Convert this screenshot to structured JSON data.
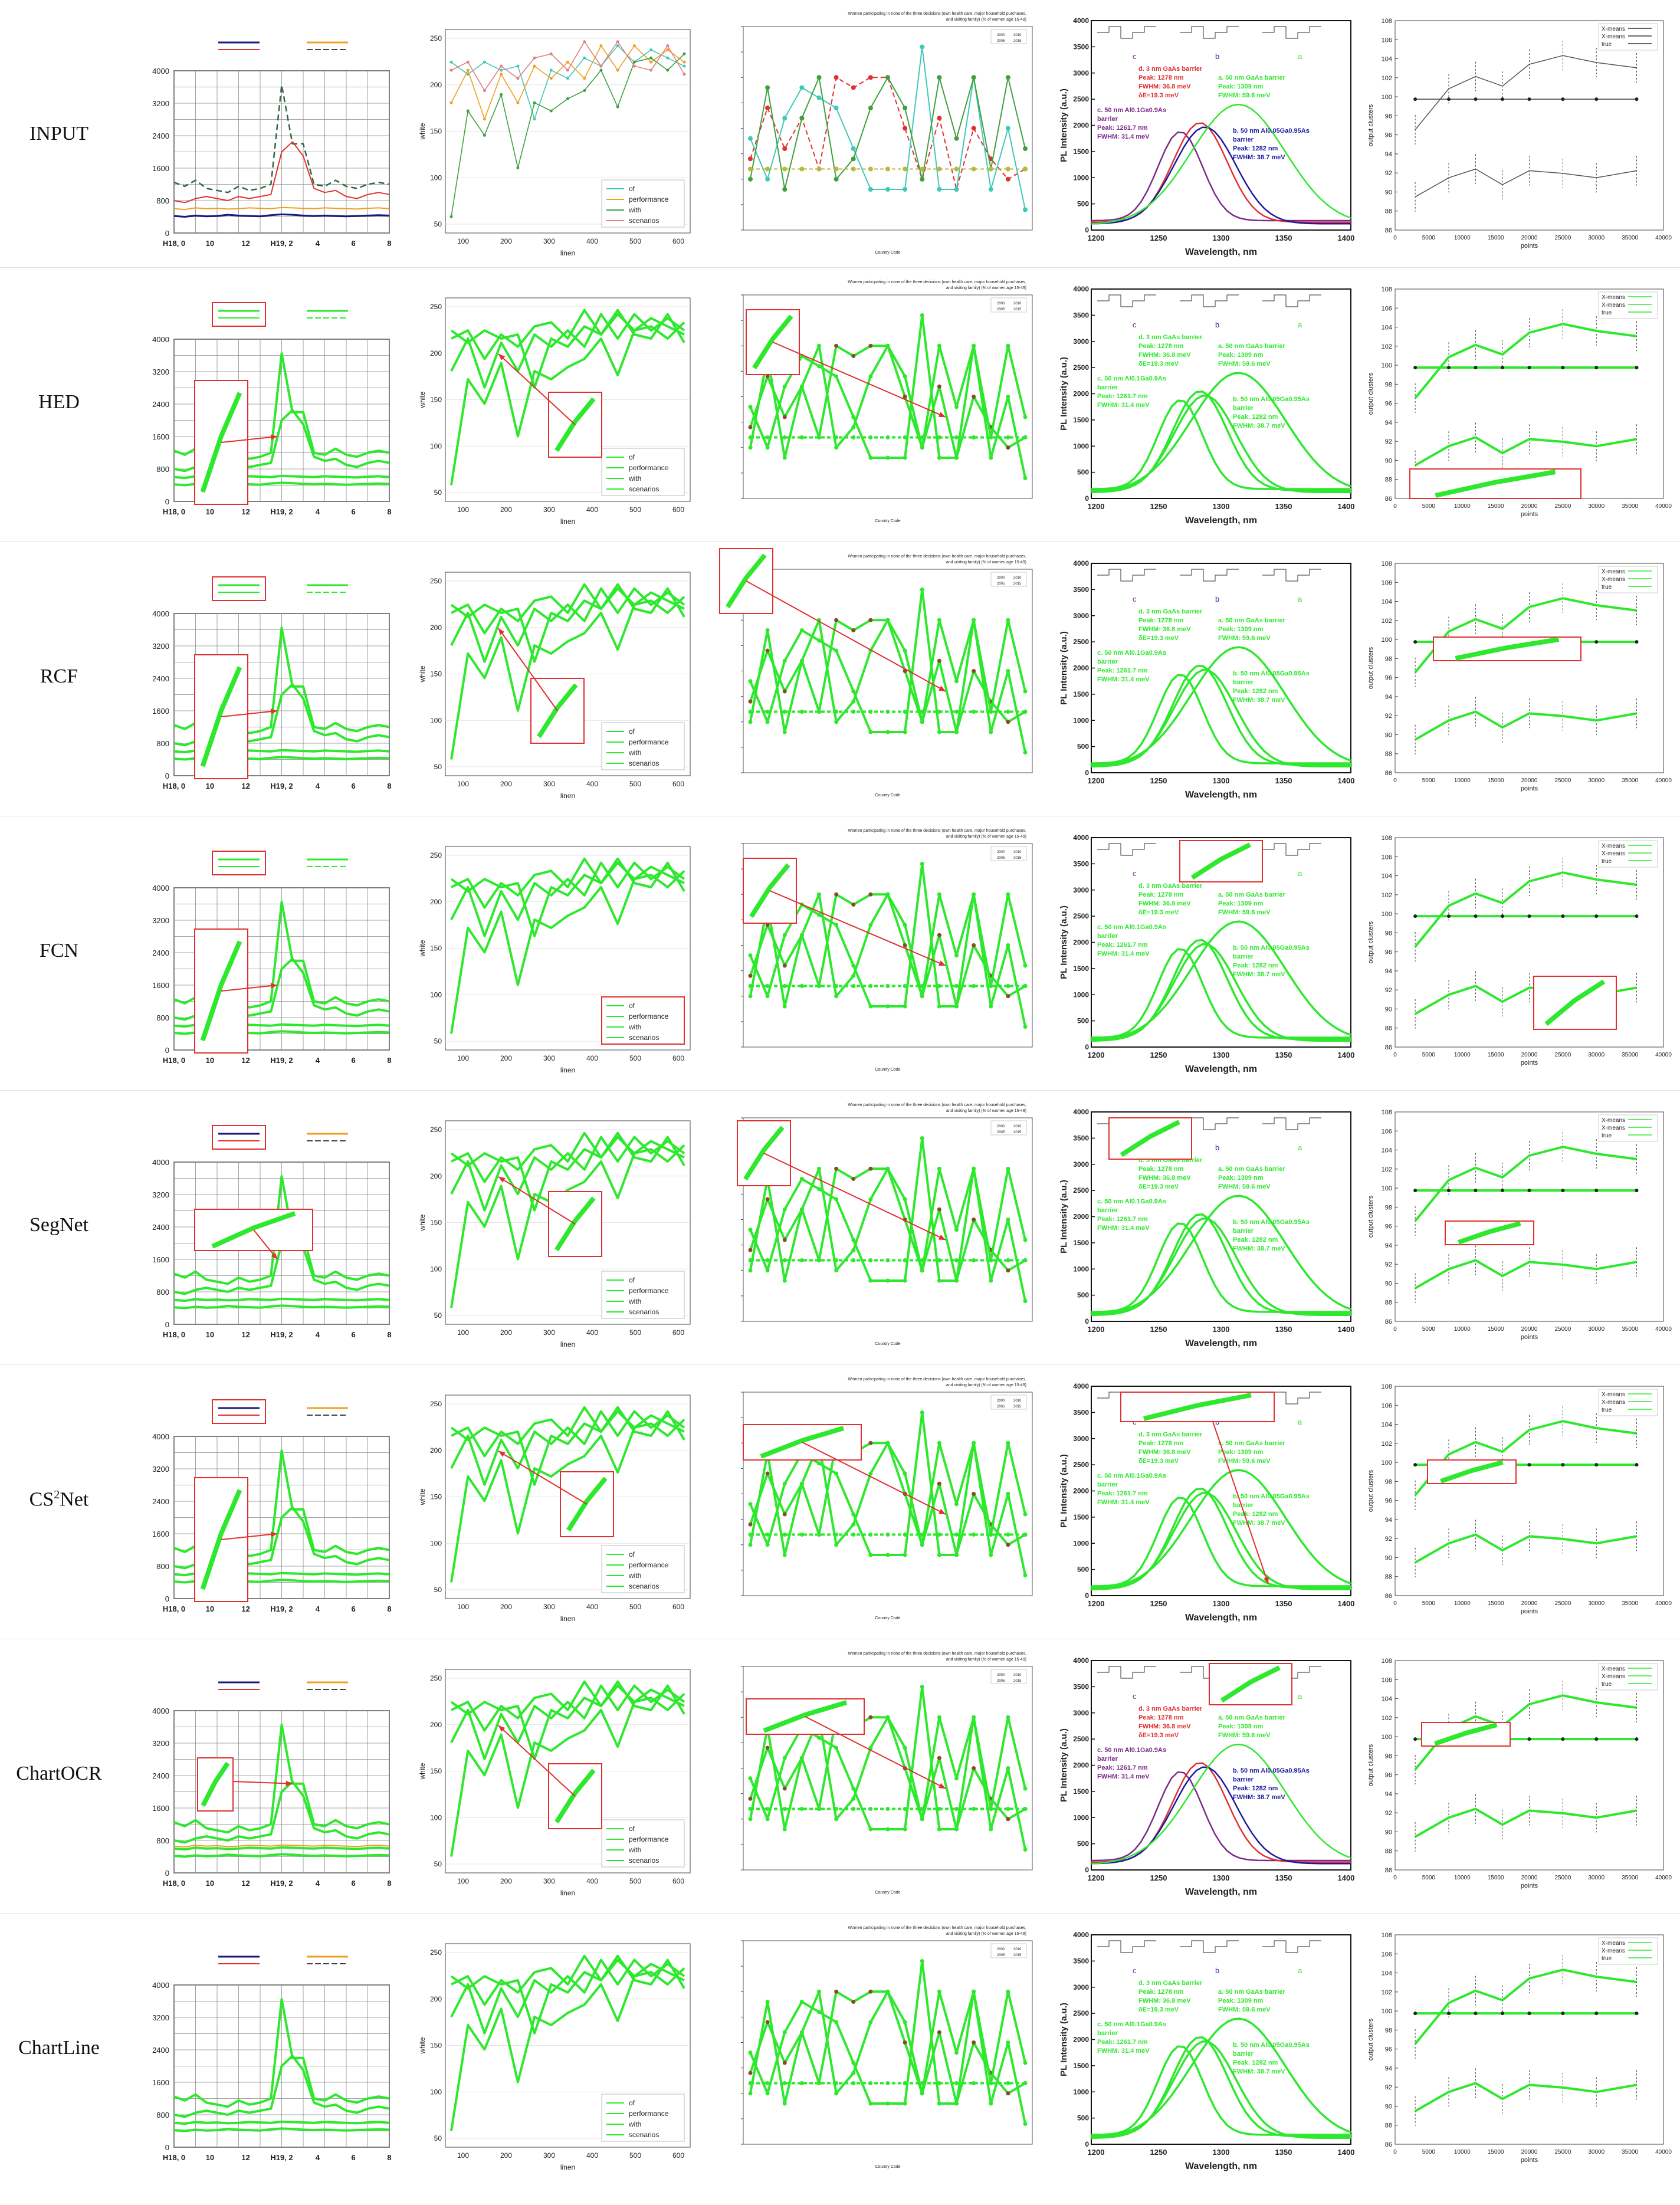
{
  "rows": [
    {
      "id": "input",
      "label": "INPUT"
    },
    {
      "id": "hed",
      "label": "HED"
    },
    {
      "id": "rcf",
      "label": "RCF"
    },
    {
      "id": "fcn",
      "label": "FCN"
    },
    {
      "id": "segnet",
      "label": "SegNet"
    },
    {
      "id": "cs2net",
      "label_prefix": "CS",
      "label_sup": "2",
      "label_suffix": "Net"
    },
    {
      "id": "chartocr",
      "label": "ChartOCR"
    },
    {
      "id": "chartline",
      "label": "ChartLine"
    }
  ],
  "colors": {
    "green": "#2ee82e",
    "red": "#e03030",
    "navy": "#1a1a7a",
    "orange": "#f0a020",
    "olive": "#b8b840",
    "teal": "#40c8b8",
    "blue": "#1a1aa0",
    "purple": "#7a2a8a",
    "grid": "#cccccc",
    "dark": "#333333"
  },
  "chart1": {
    "yticks": [
      "4000",
      "3200",
      "2400",
      "1600",
      "800",
      "0"
    ],
    "xticks": [
      "H18, 0",
      "10",
      "12",
      "H19, 2",
      "4",
      "6",
      "8"
    ]
  },
  "chart2": {
    "ylabel": "white",
    "xlabel": "linen",
    "yticks": [
      "250",
      "200",
      "150",
      "100",
      "50"
    ],
    "xticks": [
      "100",
      "200",
      "300",
      "400",
      "500",
      "600"
    ],
    "legend": [
      "of",
      "performance",
      "with",
      "scenarios"
    ]
  },
  "chart3": {
    "title": "Women participating in none of the three decisions (own health care, major household purchases, and visiting family) (% of women age 15-49)",
    "legend": [
      "2000",
      "2010",
      "2005",
      "2015"
    ],
    "xlabel": "Country Code"
  },
  "chart4": {
    "ylabel": "PL Intensity (a.u.)",
    "xlabel": "Wavelength, nm",
    "yticks": [
      "4000",
      "3500",
      "3000",
      "2500",
      "2000",
      "1500",
      "1000",
      "500",
      "0"
    ],
    "xticks": [
      "1200",
      "1250",
      "1300",
      "1350",
      "1400"
    ],
    "markers": [
      "c",
      "b",
      "a"
    ],
    "annot_d": [
      "d. 3 nm GaAs barrier",
      "Peak: 1278 nm",
      "FWHM: 36.8 meV",
      "δE=19.3 meV"
    ],
    "annot_a": [
      "a. 50 nm GaAs barrier",
      "Peak: 1309 nm",
      "FWHM: 59.6 meV"
    ],
    "annot_c": [
      "c. 50 nm Al0.1Ga0.9As",
      "barrier",
      "Peak: 1261.7 nm",
      "FWHM: 31.4 meV"
    ],
    "annot_b": [
      "b. 50 nm Al0.05Ga0.95As",
      "barrier",
      "Peak: 1282 nm",
      "FWHM: 38.7 meV"
    ]
  },
  "chart5": {
    "ylabel": "output clusters",
    "xlabel": "points",
    "yticks": [
      "108",
      "106",
      "104",
      "102",
      "100",
      "98",
      "96",
      "94",
      "92",
      "90",
      "88",
      "86"
    ],
    "xticks": [
      "0",
      "5000",
      "10000",
      "15000",
      "20000",
      "25000",
      "30000",
      "35000",
      "40000"
    ],
    "legend": [
      "X-means",
      "X-means",
      "true"
    ]
  }
}
